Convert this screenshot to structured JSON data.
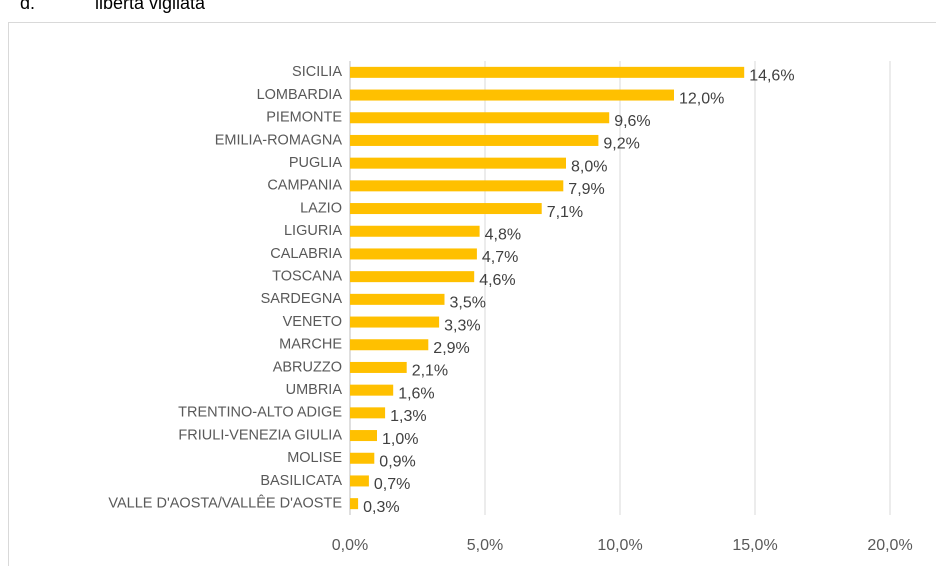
{
  "chart_data": {
    "type": "bar",
    "orientation": "horizontal",
    "title_marker": "d.",
    "title": "libertà vigilata",
    "categories": [
      "SICILIA",
      "LOMBARDIA",
      "PIEMONTE",
      "EMILIA-ROMAGNA",
      "PUGLIA",
      "CAMPANIA",
      "LAZIO",
      "LIGURIA",
      "CALABRIA",
      "TOSCANA",
      "SARDEGNA",
      "VENETO",
      "MARCHE",
      "ABRUZZO",
      "UMBRIA",
      "TRENTINO-ALTO ADIGE",
      "FRIULI-VENEZIA GIULIA",
      "MOLISE",
      "BASILICATA",
      "VALLE D'AOSTA/VALLÊE D'AOSTE"
    ],
    "values": [
      14.6,
      12.0,
      9.6,
      9.2,
      8.0,
      7.9,
      7.1,
      4.8,
      4.7,
      4.6,
      3.5,
      3.3,
      2.9,
      2.1,
      1.6,
      1.3,
      1.0,
      0.9,
      0.7,
      0.3
    ],
    "value_labels": [
      "14,6%",
      "12,0%",
      "9,6%",
      "9,2%",
      "8,0%",
      "7,9%",
      "7,1%",
      "4,8%",
      "4,7%",
      "4,6%",
      "3,5%",
      "3,3%",
      "2,9%",
      "2,1%",
      "1,6%",
      "1,3%",
      "1,0%",
      "0,9%",
      "0,7%",
      "0,3%"
    ],
    "color": "#ffc000",
    "xlim": [
      0,
      20
    ],
    "xticks": [
      {
        "value": 0,
        "label": "0,0%"
      },
      {
        "value": 5,
        "label": "5,0%"
      },
      {
        "value": 10,
        "label": "10,0%"
      },
      {
        "value": 15,
        "label": "15,0%"
      },
      {
        "value": 20,
        "label": "20,0%"
      }
    ],
    "grid": true
  }
}
